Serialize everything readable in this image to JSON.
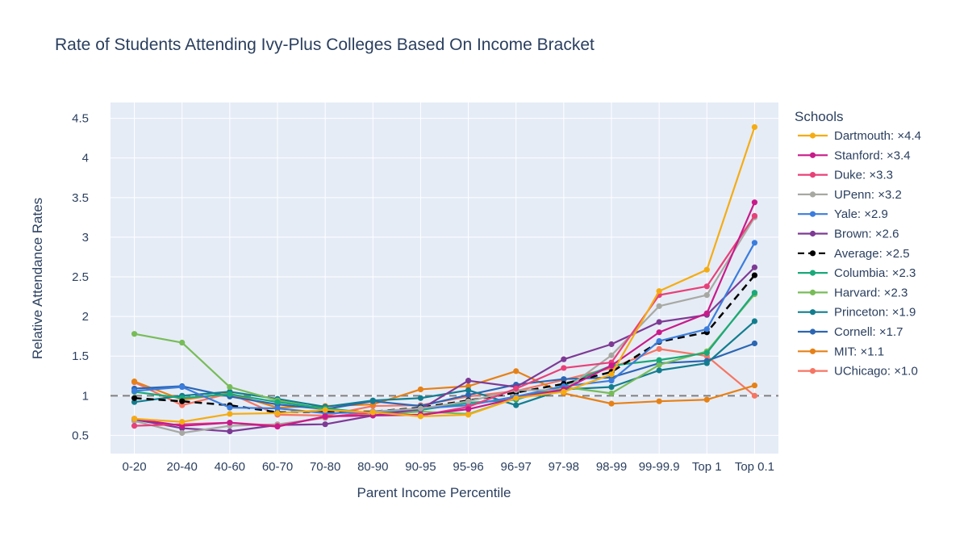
{
  "chart_data": {
    "type": "line",
    "title": "Rate of Students Attending Ivy-Plus Colleges Based On Income Bracket",
    "xlabel": "Parent Income Percentile",
    "ylabel": "Relative Attendance Rates",
    "ylim": [
      0.27,
      4.7
    ],
    "yticks": [
      0.5,
      1,
      1.5,
      2,
      2.5,
      3,
      3.5,
      4,
      4.5
    ],
    "ytick_labels": [
      "0.5",
      "1",
      "1.5",
      "2",
      "2.5",
      "3",
      "3.5",
      "4",
      "4.5"
    ],
    "grid": true,
    "reference_line": 1,
    "categories": [
      "0-20",
      "20-40",
      "40-60",
      "60-70",
      "70-80",
      "80-90",
      "90-95",
      "95-96",
      "96-97",
      "97-98",
      "98-99",
      "99-99.9",
      "Top 1",
      "Top 0.1"
    ],
    "legend_title": "Schools",
    "legend_position": "right",
    "series": [
      {
        "name": "Dartmouth: ×4.4",
        "color": "#f5ac13",
        "dash": false,
        "values": [
          0.71,
          0.67,
          0.77,
          0.78,
          0.82,
          0.79,
          0.74,
          0.76,
          0.97,
          1.05,
          1.27,
          2.32,
          2.59,
          4.39
        ]
      },
      {
        "name": "Stanford: ×3.4",
        "color": "#c91a8a",
        "dash": false,
        "values": [
          0.71,
          0.62,
          0.66,
          0.61,
          0.74,
          0.75,
          0.76,
          0.83,
          0.97,
          1.08,
          1.38,
          1.8,
          2.04,
          3.44
        ]
      },
      {
        "name": "Duke: ×3.3",
        "color": "#e84078",
        "dash": false,
        "values": [
          0.62,
          0.64,
          0.66,
          0.62,
          0.73,
          0.79,
          0.75,
          0.86,
          1.09,
          1.35,
          1.42,
          2.27,
          2.38,
          3.27
        ]
      },
      {
        "name": "UPenn: ×3.2",
        "color": "#a8a8a3",
        "dash": false,
        "values": [
          0.68,
          0.53,
          0.62,
          0.64,
          0.72,
          0.8,
          0.84,
          0.93,
          1.07,
          1.07,
          1.51,
          2.13,
          2.27,
          3.25
        ]
      },
      {
        "name": "Yale: ×2.9",
        "color": "#3b7ddd",
        "dash": false,
        "values": [
          1.06,
          1.11,
          0.85,
          0.84,
          0.78,
          0.79,
          0.84,
          0.88,
          0.99,
          1.12,
          1.19,
          1.69,
          1.84,
          2.93
        ]
      },
      {
        "name": "Brown: ×2.6",
        "color": "#7d3a94",
        "dash": false,
        "values": [
          0.7,
          0.59,
          0.55,
          0.63,
          0.64,
          0.75,
          0.83,
          1.19,
          1.11,
          1.46,
          1.65,
          1.93,
          2.02,
          2.62
        ]
      },
      {
        "name": "Average: ×2.5",
        "color": "#000000",
        "dash": true,
        "values": [
          0.97,
          0.93,
          0.88,
          0.79,
          0.8,
          0.8,
          0.85,
          0.94,
          1.04,
          1.15,
          1.3,
          1.68,
          1.8,
          2.52
        ]
      },
      {
        "name": "Columbia: ×2.3",
        "color": "#1aa97a",
        "dash": false,
        "values": [
          1.05,
          0.97,
          1.02,
          0.92,
          0.84,
          0.78,
          0.82,
          0.91,
          0.95,
          1.13,
          1.38,
          1.45,
          1.54,
          2.3
        ]
      },
      {
        "name": "Harvard: ×2.3",
        "color": "#78bc58",
        "dash": false,
        "values": [
          1.78,
          1.67,
          1.11,
          0.94,
          0.83,
          0.75,
          0.8,
          0.77,
          0.97,
          1.11,
          1.03,
          1.39,
          1.56,
          2.28
        ]
      },
      {
        "name": "Princeton: ×1.9",
        "color": "#137d8e",
        "dash": false,
        "values": [
          0.92,
          1.0,
          1.05,
          0.96,
          0.86,
          0.94,
          0.97,
          1.07,
          0.88,
          1.08,
          1.11,
          1.32,
          1.41,
          1.94
        ]
      },
      {
        "name": "Cornell: ×1.7",
        "color": "#2c66b3",
        "dash": false,
        "values": [
          1.09,
          1.12,
          0.99,
          0.89,
          0.83,
          0.93,
          0.87,
          1.01,
          1.14,
          1.21,
          1.23,
          1.41,
          1.44,
          1.66
        ]
      },
      {
        "name": "MIT: ×1.1",
        "color": "#e68117",
        "dash": false,
        "values": [
          1.18,
          0.95,
          1.03,
          0.85,
          0.87,
          0.89,
          1.08,
          1.12,
          1.31,
          1.03,
          0.9,
          0.93,
          0.95,
          1.13
        ]
      },
      {
        "name": "UChicago: ×1.0",
        "color": "#f67563",
        "dash": false,
        "values": [
          1.17,
          0.88,
          1.03,
          0.76,
          0.75,
          0.87,
          0.88,
          0.99,
          1.06,
          1.2,
          1.35,
          1.59,
          1.5,
          1.0
        ]
      }
    ]
  }
}
